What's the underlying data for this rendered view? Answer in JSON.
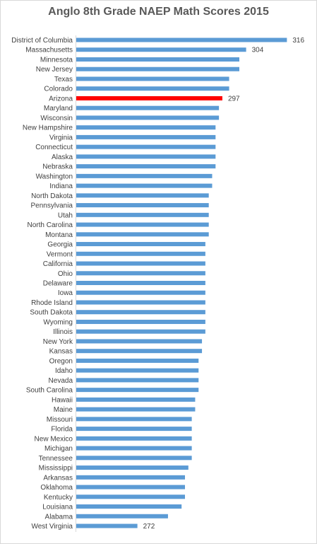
{
  "chart_data": {
    "type": "bar",
    "orientation": "horizontal",
    "title": "Anglo 8th Grade NAEP Math Scores 2015",
    "xlabel": "",
    "ylabel": "",
    "grid": false,
    "legend": "none",
    "xlim": [
      254,
      318
    ],
    "colors": {
      "bar": "#5b9bd5",
      "highlight": "#ff0000"
    },
    "highlight_category": "Arizona",
    "categories": [
      "District of Columbia",
      "Massachusetts",
      "Minnesota",
      "New Jersey",
      "Texas",
      "Colorado",
      "Arizona",
      "Maryland",
      "Wisconsin",
      "New Hampshire",
      "Virginia",
      "Connecticut",
      "Alaska",
      "Nebraska",
      "Washington",
      "Indiana",
      "North Dakota",
      "Pennsylvania",
      "Utah",
      "North Carolina",
      "Montana",
      "Georgia",
      "Vermont",
      "California",
      "Ohio",
      "Delaware",
      "Iowa",
      "Rhode Island",
      "South Dakota",
      "Wyoming",
      "Illinois",
      "New York",
      "Kansas",
      "Oregon",
      "Idaho",
      "Nevada",
      "South Carolina",
      "Hawaii",
      "Maine",
      "Missouri",
      "Florida",
      "New Mexico",
      "Michigan",
      "Tennessee",
      "Mississippi",
      "Arkansas",
      "Oklahoma",
      "Kentucky",
      "Louisiana",
      "Alabama",
      "West Virginia"
    ],
    "values": [
      316,
      304,
      302,
      302,
      299,
      299,
      297,
      296,
      296,
      295,
      295,
      295,
      295,
      295,
      294,
      294,
      293,
      293,
      293,
      293,
      293,
      292,
      292,
      292,
      292,
      292,
      292,
      292,
      292,
      292,
      292,
      291,
      291,
      290,
      290,
      290,
      290,
      289,
      289,
      288,
      288,
      288,
      288,
      288,
      287,
      286,
      286,
      286,
      285,
      281,
      272
    ],
    "data_labels": [
      {
        "category": "District of Columbia",
        "text": "316"
      },
      {
        "category": "Massachusetts",
        "text": "304"
      },
      {
        "category": "Arizona",
        "text": "297"
      },
      {
        "category": "West Virginia",
        "text": "272"
      }
    ]
  }
}
